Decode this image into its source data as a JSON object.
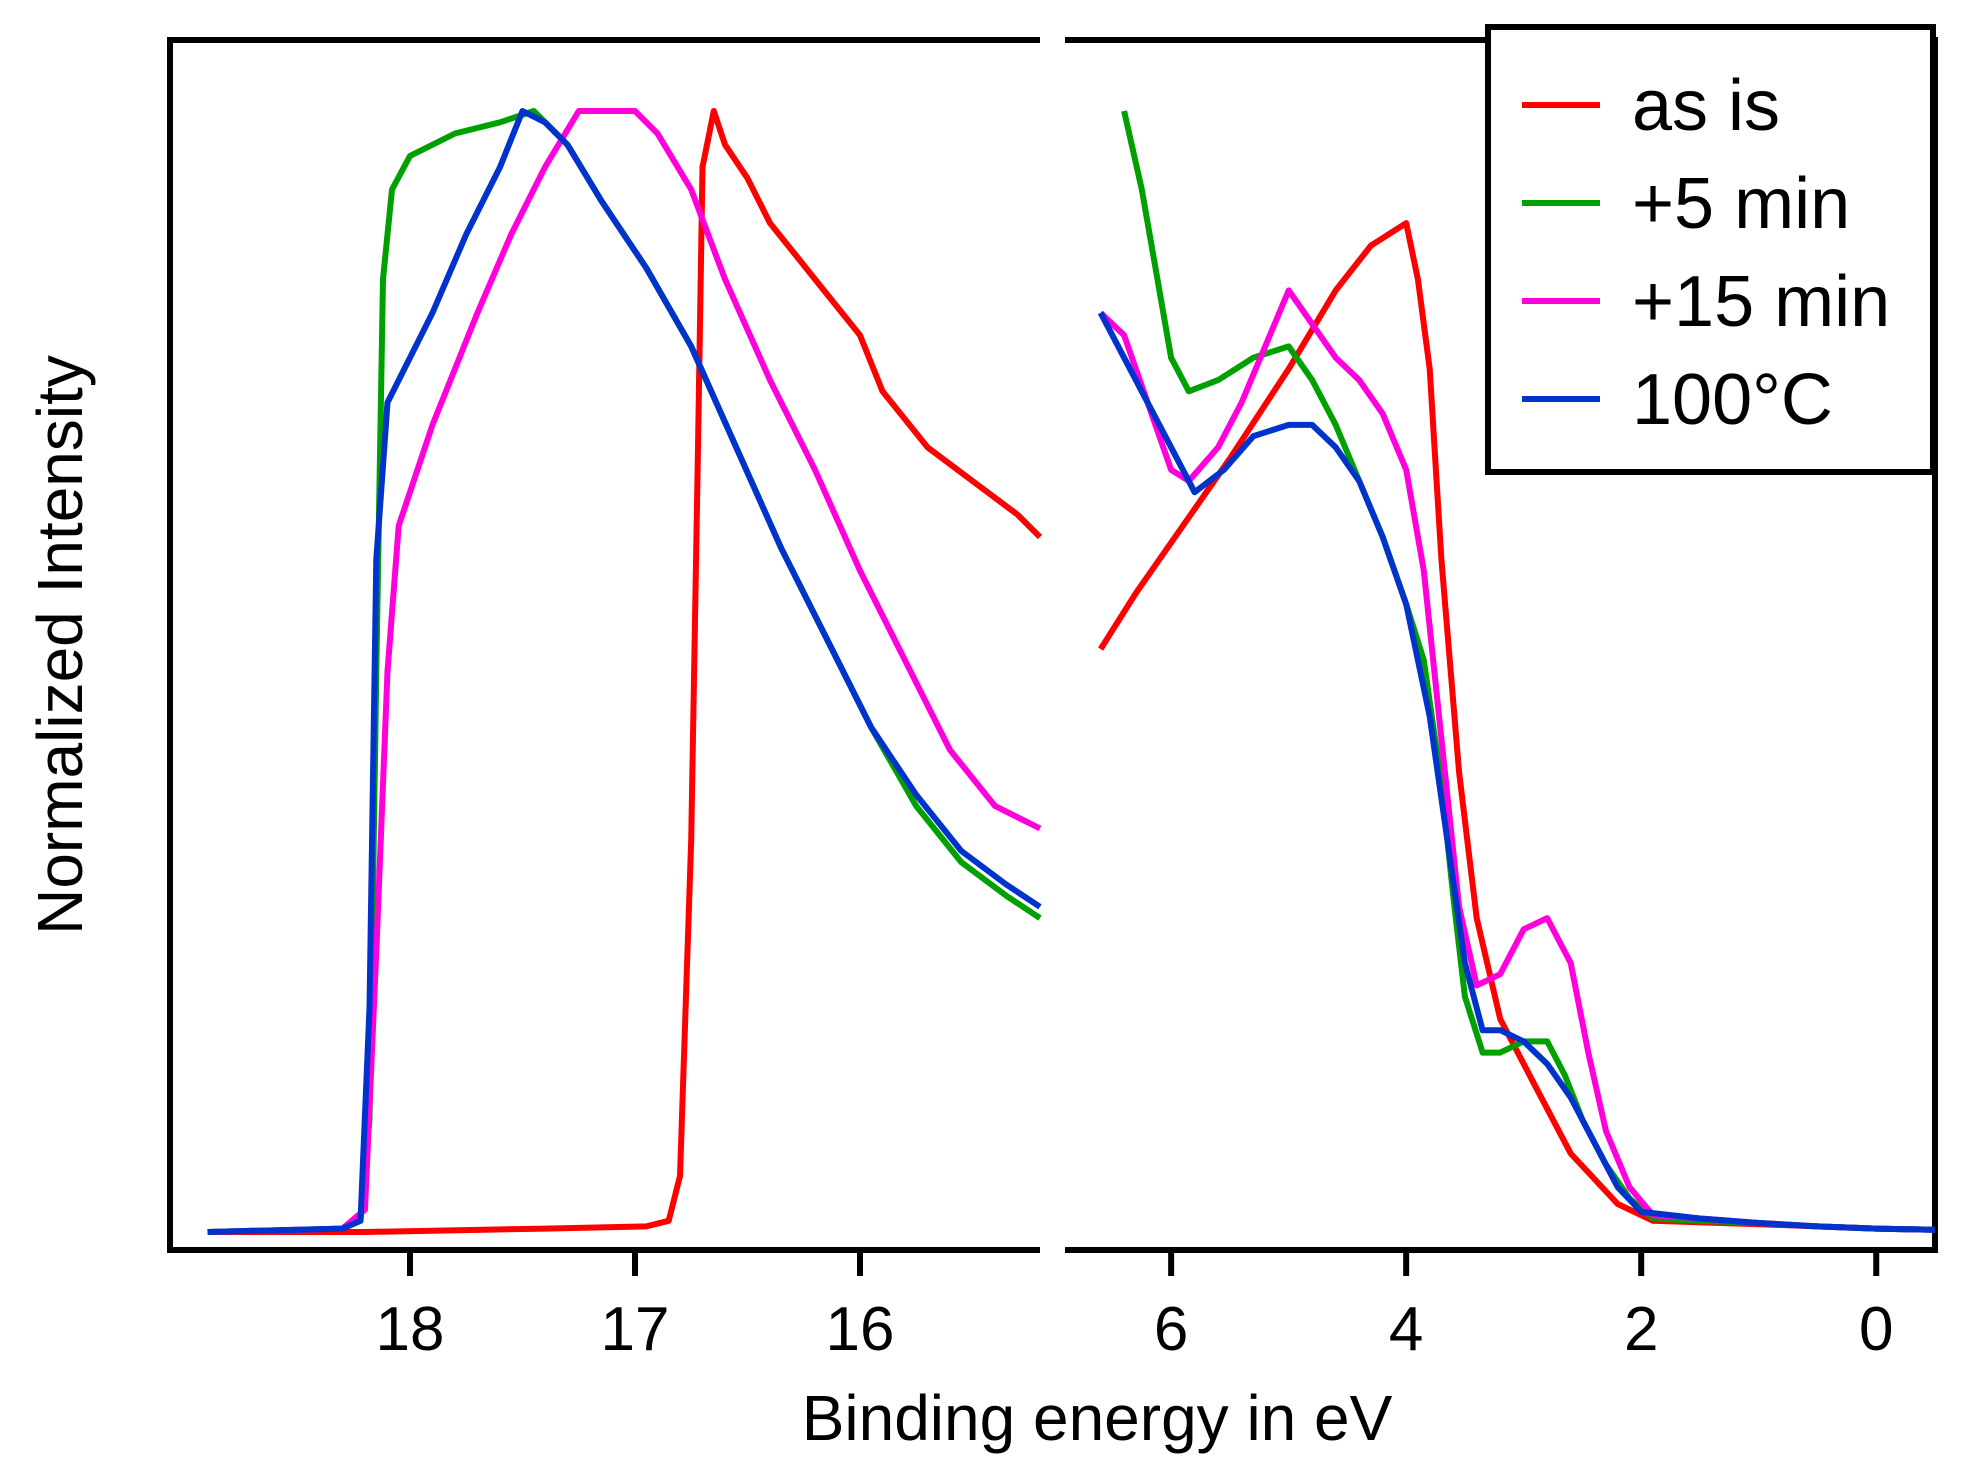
{
  "chart_data": {
    "type": "line",
    "title": "",
    "xlabel": "Binding energy in eV",
    "ylabel": "Normalized Intensity",
    "y_ticks_shown": false,
    "legend_position": "top-right",
    "panels": [
      {
        "name": "left",
        "xlim": [
          19.0,
          15.2
        ],
        "ticks": [
          18,
          17,
          16
        ],
        "tick_labels": [
          "18",
          "17",
          "16"
        ]
      },
      {
        "name": "right",
        "xlim": [
          6.75,
          -0.5
        ],
        "ticks": [
          6,
          4,
          2,
          0
        ],
        "tick_labels": [
          "6",
          "4",
          "2",
          "0"
        ]
      }
    ],
    "ylim": [
      0,
      1.05
    ],
    "series": [
      {
        "name": "as is",
        "color": "#ff0000",
        "left": [
          [
            18.9,
            0.0
          ],
          [
            18.2,
            0.0
          ],
          [
            17.4,
            0.003
          ],
          [
            16.95,
            0.005
          ],
          [
            16.85,
            0.01
          ],
          [
            16.8,
            0.05
          ],
          [
            16.75,
            0.35
          ],
          [
            16.72,
            0.7
          ],
          [
            16.7,
            0.95
          ],
          [
            16.65,
            1.0
          ],
          [
            16.6,
            0.97
          ],
          [
            16.5,
            0.94
          ],
          [
            16.4,
            0.9
          ],
          [
            16.2,
            0.85
          ],
          [
            16.0,
            0.8
          ],
          [
            15.9,
            0.75
          ],
          [
            15.7,
            0.7
          ],
          [
            15.5,
            0.67
          ],
          [
            15.3,
            0.64
          ],
          [
            15.2,
            0.62
          ]
        ],
        "right": [
          [
            6.6,
            0.52
          ],
          [
            6.3,
            0.57
          ],
          [
            5.9,
            0.63
          ],
          [
            5.5,
            0.69
          ],
          [
            5.0,
            0.77
          ],
          [
            4.6,
            0.84
          ],
          [
            4.3,
            0.88
          ],
          [
            4.0,
            0.9
          ],
          [
            3.9,
            0.85
          ],
          [
            3.8,
            0.77
          ],
          [
            3.7,
            0.6
          ],
          [
            3.55,
            0.41
          ],
          [
            3.4,
            0.28
          ],
          [
            3.2,
            0.19
          ],
          [
            2.9,
            0.13
          ],
          [
            2.6,
            0.07
          ],
          [
            2.2,
            0.025
          ],
          [
            1.9,
            0.01
          ],
          [
            1.0,
            0.007
          ],
          [
            0.0,
            0.003
          ],
          [
            -0.5,
            0.002
          ]
        ]
      },
      {
        "name": "+5 min",
        "color": "#00a000",
        "left": [
          [
            18.9,
            0.0
          ],
          [
            18.3,
            0.003
          ],
          [
            18.22,
            0.01
          ],
          [
            18.18,
            0.1
          ],
          [
            18.15,
            0.5
          ],
          [
            18.12,
            0.85
          ],
          [
            18.08,
            0.93
          ],
          [
            18.0,
            0.96
          ],
          [
            17.8,
            0.98
          ],
          [
            17.6,
            0.99
          ],
          [
            17.45,
            1.0
          ],
          [
            17.3,
            0.97
          ],
          [
            17.15,
            0.92
          ],
          [
            16.95,
            0.86
          ],
          [
            16.75,
            0.79
          ],
          [
            16.55,
            0.7
          ],
          [
            16.35,
            0.61
          ],
          [
            16.15,
            0.53
          ],
          [
            15.95,
            0.45
          ],
          [
            15.75,
            0.38
          ],
          [
            15.55,
            0.33
          ],
          [
            15.35,
            0.3
          ],
          [
            15.2,
            0.28
          ]
        ],
        "right": [
          [
            6.4,
            1.0
          ],
          [
            6.25,
            0.93
          ],
          [
            6.1,
            0.84
          ],
          [
            6.0,
            0.78
          ],
          [
            5.85,
            0.75
          ],
          [
            5.6,
            0.76
          ],
          [
            5.3,
            0.78
          ],
          [
            5.0,
            0.79
          ],
          [
            4.8,
            0.76
          ],
          [
            4.6,
            0.72
          ],
          [
            4.4,
            0.67
          ],
          [
            4.2,
            0.62
          ],
          [
            4.0,
            0.56
          ],
          [
            3.85,
            0.51
          ],
          [
            3.7,
            0.4
          ],
          [
            3.6,
            0.3
          ],
          [
            3.5,
            0.21
          ],
          [
            3.35,
            0.16
          ],
          [
            3.2,
            0.16
          ],
          [
            3.0,
            0.17
          ],
          [
            2.8,
            0.17
          ],
          [
            2.65,
            0.14
          ],
          [
            2.5,
            0.1
          ],
          [
            2.3,
            0.06
          ],
          [
            2.1,
            0.03
          ],
          [
            1.9,
            0.012
          ],
          [
            1.5,
            0.01
          ],
          [
            1.0,
            0.008
          ],
          [
            0.5,
            0.005
          ],
          [
            0.0,
            0.003
          ],
          [
            -0.5,
            0.002
          ]
        ]
      },
      {
        "name": "+15 min",
        "color": "#ff00dd",
        "left": [
          [
            18.9,
            0.0
          ],
          [
            18.3,
            0.003
          ],
          [
            18.2,
            0.02
          ],
          [
            18.15,
            0.25
          ],
          [
            18.1,
            0.5
          ],
          [
            18.05,
            0.63
          ],
          [
            17.9,
            0.72
          ],
          [
            17.7,
            0.82
          ],
          [
            17.55,
            0.89
          ],
          [
            17.4,
            0.95
          ],
          [
            17.25,
            1.0
          ],
          [
            17.0,
            1.0
          ],
          [
            16.9,
            0.98
          ],
          [
            16.75,
            0.93
          ],
          [
            16.6,
            0.85
          ],
          [
            16.4,
            0.76
          ],
          [
            16.2,
            0.68
          ],
          [
            16.0,
            0.59
          ],
          [
            15.8,
            0.51
          ],
          [
            15.6,
            0.43
          ],
          [
            15.4,
            0.38
          ],
          [
            15.2,
            0.36
          ]
        ],
        "right": [
          [
            6.6,
            0.82
          ],
          [
            6.4,
            0.8
          ],
          [
            6.2,
            0.74
          ],
          [
            6.0,
            0.68
          ],
          [
            5.85,
            0.67
          ],
          [
            5.6,
            0.7
          ],
          [
            5.4,
            0.74
          ],
          [
            5.2,
            0.79
          ],
          [
            5.0,
            0.84
          ],
          [
            4.8,
            0.81
          ],
          [
            4.6,
            0.78
          ],
          [
            4.4,
            0.76
          ],
          [
            4.2,
            0.73
          ],
          [
            4.0,
            0.68
          ],
          [
            3.85,
            0.59
          ],
          [
            3.7,
            0.44
          ],
          [
            3.55,
            0.29
          ],
          [
            3.4,
            0.22
          ],
          [
            3.2,
            0.23
          ],
          [
            3.0,
            0.27
          ],
          [
            2.8,
            0.28
          ],
          [
            2.6,
            0.24
          ],
          [
            2.45,
            0.16
          ],
          [
            2.3,
            0.09
          ],
          [
            2.1,
            0.04
          ],
          [
            1.9,
            0.015
          ],
          [
            1.5,
            0.012
          ],
          [
            1.0,
            0.008
          ],
          [
            0.5,
            0.005
          ],
          [
            0.0,
            0.003
          ],
          [
            -0.5,
            0.002
          ]
        ]
      },
      {
        "name": "100°C",
        "color": "#0033cc",
        "left": [
          [
            18.9,
            0.0
          ],
          [
            18.3,
            0.003
          ],
          [
            18.22,
            0.01
          ],
          [
            18.18,
            0.2
          ],
          [
            18.15,
            0.6
          ],
          [
            18.1,
            0.74
          ],
          [
            17.9,
            0.82
          ],
          [
            17.75,
            0.89
          ],
          [
            17.6,
            0.95
          ],
          [
            17.5,
            1.0
          ],
          [
            17.4,
            0.99
          ],
          [
            17.3,
            0.97
          ],
          [
            17.15,
            0.92
          ],
          [
            16.95,
            0.86
          ],
          [
            16.75,
            0.79
          ],
          [
            16.55,
            0.7
          ],
          [
            16.35,
            0.61
          ],
          [
            16.15,
            0.53
          ],
          [
            15.95,
            0.45
          ],
          [
            15.75,
            0.39
          ],
          [
            15.55,
            0.34
          ],
          [
            15.35,
            0.31
          ],
          [
            15.2,
            0.29
          ]
        ],
        "right": [
          [
            6.6,
            0.82
          ],
          [
            6.4,
            0.78
          ],
          [
            6.2,
            0.74
          ],
          [
            6.0,
            0.7
          ],
          [
            5.8,
            0.66
          ],
          [
            5.55,
            0.68
          ],
          [
            5.3,
            0.71
          ],
          [
            5.0,
            0.72
          ],
          [
            4.8,
            0.72
          ],
          [
            4.6,
            0.7
          ],
          [
            4.4,
            0.67
          ],
          [
            4.2,
            0.62
          ],
          [
            4.0,
            0.56
          ],
          [
            3.8,
            0.46
          ],
          [
            3.65,
            0.35
          ],
          [
            3.5,
            0.24
          ],
          [
            3.35,
            0.18
          ],
          [
            3.2,
            0.18
          ],
          [
            3.0,
            0.17
          ],
          [
            2.8,
            0.15
          ],
          [
            2.6,
            0.12
          ],
          [
            2.4,
            0.08
          ],
          [
            2.2,
            0.04
          ],
          [
            2.0,
            0.018
          ],
          [
            1.5,
            0.012
          ],
          [
            1.0,
            0.008
          ],
          [
            0.5,
            0.005
          ],
          [
            0.0,
            0.003
          ],
          [
            -0.5,
            0.002
          ]
        ]
      }
    ]
  }
}
